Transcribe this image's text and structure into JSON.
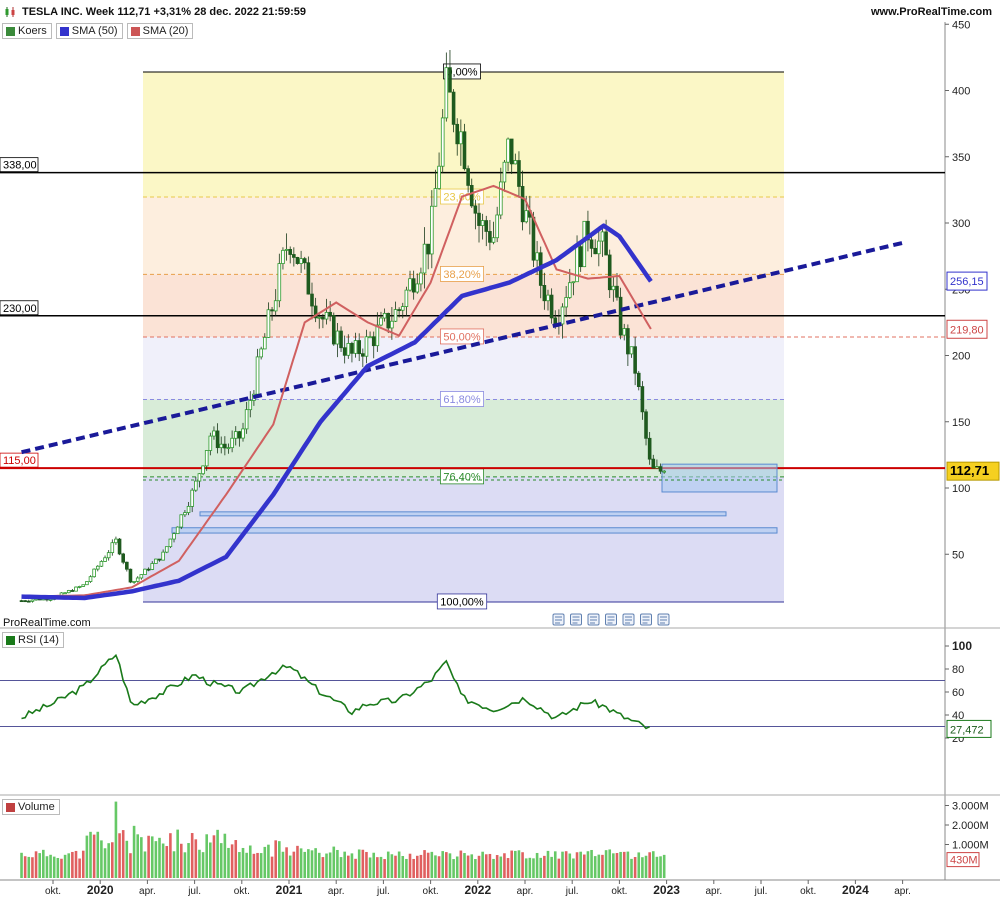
{
  "header": {
    "title": "TESLA INC. Week 112,71 +3,31% 28 dec. 2022 21:59:59",
    "site": "www.ProRealTime.com"
  },
  "credit": "ProRealTime.com",
  "price_panel": {
    "legend": [
      {
        "label": "Koers",
        "color": "#3a8a3a"
      },
      {
        "label": "SMA (50)",
        "color": "#3333cc"
      },
      {
        "label": "SMA (20)",
        "color": "#cc5555"
      }
    ],
    "y_ticks": [
      "450",
      "400",
      "350",
      "300",
      "250",
      "200",
      "150",
      "100",
      "50"
    ],
    "price_tag": "112,71",
    "sma50_tag": "256,15",
    "sma20_tag": "219,80",
    "level_labels": [
      {
        "label": "338,00",
        "value": 338
      },
      {
        "label": "230,00",
        "value": 230
      },
      {
        "label": "115,00",
        "value": 115
      }
    ],
    "fib_labels": [
      "0,00%",
      "23,60%",
      "38,20%",
      "50,00%",
      "61,80%",
      "76,40%",
      "100,00%"
    ],
    "colors": {
      "up": "#2e9a2e",
      "down": "#1f5a1f",
      "sma50": "#3333cc",
      "sma20": "#d06060",
      "trend": "#1a1a99",
      "support": "#cc0000"
    }
  },
  "rsi_panel": {
    "label": "RSI (14)",
    "y_ticks": [
      "100",
      "80",
      "60",
      "40",
      "20"
    ],
    "value_tag": "27,472",
    "color": "#1a7a1a"
  },
  "volume_panel": {
    "label": "Volume",
    "y_ticks": [
      "3.000M",
      "2.000M",
      "1.000M"
    ],
    "value_tag": "430M"
  },
  "x_axis": {
    "ticks": [
      {
        "label": "okt.",
        "bold": false
      },
      {
        "label": "2020",
        "bold": true
      },
      {
        "label": "apr.",
        "bold": false
      },
      {
        "label": "jul.",
        "bold": false
      },
      {
        "label": "okt.",
        "bold": false
      },
      {
        "label": "2021",
        "bold": true
      },
      {
        "label": "apr.",
        "bold": false
      },
      {
        "label": "jul.",
        "bold": false
      },
      {
        "label": "okt.",
        "bold": false
      },
      {
        "label": "2022",
        "bold": true
      },
      {
        "label": "apr.",
        "bold": false
      },
      {
        "label": "jul.",
        "bold": false
      },
      {
        "label": "okt.",
        "bold": false
      },
      {
        "label": "2023",
        "bold": true
      },
      {
        "label": "apr.",
        "bold": false
      },
      {
        "label": "jul.",
        "bold": false
      },
      {
        "label": "okt.",
        "bold": false
      },
      {
        "label": "2024",
        "bold": true
      },
      {
        "label": "apr.",
        "bold": false
      }
    ]
  },
  "chart_data": {
    "type": "candlestick",
    "ylim": [
      0,
      460
    ],
    "fibonacci": {
      "high": 414,
      "low": 14,
      "levels": [
        0,
        0.236,
        0.382,
        0.5,
        0.618,
        0.764,
        1
      ]
    },
    "horizontal_levels": [
      338,
      230,
      115
    ],
    "trendline": {
      "from": {
        "date": "2019-08",
        "value": 127
      },
      "to": {
        "date": "2024-04",
        "value": 285
      }
    },
    "support_zones": [
      {
        "from": 118,
        "to": 97
      },
      {
        "from": 82,
        "to": 79
      },
      {
        "from": 70,
        "to": 66
      }
    ],
    "close_anchors": [
      [
        "2019-08",
        15
      ],
      [
        "2019-10",
        17
      ],
      [
        "2019-12",
        27
      ],
      [
        "2020-02",
        60
      ],
      [
        "2020-03",
        28
      ],
      [
        "2020-05",
        50
      ],
      [
        "2020-07",
        100
      ],
      [
        "2020-08",
        140
      ],
      [
        "2020-09",
        130
      ],
      [
        "2020-10",
        140
      ],
      [
        "2020-11",
        190
      ],
      [
        "2020-12",
        240
      ],
      [
        "2021-01",
        290
      ],
      [
        "2021-03",
        230
      ],
      [
        "2021-05",
        200
      ],
      [
        "2021-06",
        210
      ],
      [
        "2021-08",
        235
      ],
      [
        "2021-10",
        290
      ],
      [
        "2021-11",
        400
      ],
      [
        "2021-12",
        365
      ],
      [
        "2022-01",
        300
      ],
      [
        "2022-02",
        290
      ],
      [
        "2022-03",
        360
      ],
      [
        "2022-05",
        255
      ],
      [
        "2022-06",
        230
      ],
      [
        "2022-08",
        295
      ],
      [
        "2022-09",
        280
      ],
      [
        "2022-10",
        225
      ],
      [
        "2022-11",
        190
      ],
      [
        "2022-12",
        113
      ]
    ],
    "sma50_anchors": [
      [
        "2019-08",
        18
      ],
      [
        "2019-12",
        17
      ],
      [
        "2020-03",
        22
      ],
      [
        "2020-06",
        30
      ],
      [
        "2020-09",
        48
      ],
      [
        "2020-12",
        95
      ],
      [
        "2021-03",
        150
      ],
      [
        "2021-06",
        192
      ],
      [
        "2021-09",
        210
      ],
      [
        "2021-12",
        245
      ],
      [
        "2022-03",
        255
      ],
      [
        "2022-06",
        272
      ],
      [
        "2022-09",
        298
      ],
      [
        "2022-10",
        290
      ],
      [
        "2022-12",
        256
      ]
    ],
    "sma20_anchors": [
      [
        "2019-08",
        18
      ],
      [
        "2019-12",
        19
      ],
      [
        "2020-03",
        25
      ],
      [
        "2020-06",
        45
      ],
      [
        "2020-09",
        95
      ],
      [
        "2020-12",
        148
      ],
      [
        "2021-02",
        225
      ],
      [
        "2021-04",
        240
      ],
      [
        "2021-06",
        225
      ],
      [
        "2021-08",
        215
      ],
      [
        "2021-10",
        255
      ],
      [
        "2021-12",
        320
      ],
      [
        "2022-02",
        328
      ],
      [
        "2022-04",
        318
      ],
      [
        "2022-06",
        265
      ],
      [
        "2022-08",
        258
      ],
      [
        "2022-10",
        260
      ],
      [
        "2022-12",
        220
      ]
    ],
    "rsi_anchors": [
      [
        "2019-08",
        38
      ],
      [
        "2019-10",
        50
      ],
      [
        "2019-12",
        65
      ],
      [
        "2020-02",
        93
      ],
      [
        "2020-03",
        48
      ],
      [
        "2020-05",
        60
      ],
      [
        "2020-07",
        75
      ],
      [
        "2020-08",
        68
      ],
      [
        "2020-10",
        60
      ],
      [
        "2020-12",
        78
      ],
      [
        "2021-01",
        82
      ],
      [
        "2021-03",
        60
      ],
      [
        "2021-05",
        43
      ],
      [
        "2021-06",
        50
      ],
      [
        "2021-08",
        53
      ],
      [
        "2021-10",
        70
      ],
      [
        "2021-11",
        86
      ],
      [
        "2021-12",
        55
      ],
      [
        "2022-02",
        45
      ],
      [
        "2022-04",
        55
      ],
      [
        "2022-06",
        37
      ],
      [
        "2022-08",
        52
      ],
      [
        "2022-09",
        48
      ],
      [
        "2022-10",
        40
      ],
      [
        "2022-12",
        27.472
      ]
    ],
    "volume_peak_date": "2020-02",
    "volume_peak": 3200
  }
}
